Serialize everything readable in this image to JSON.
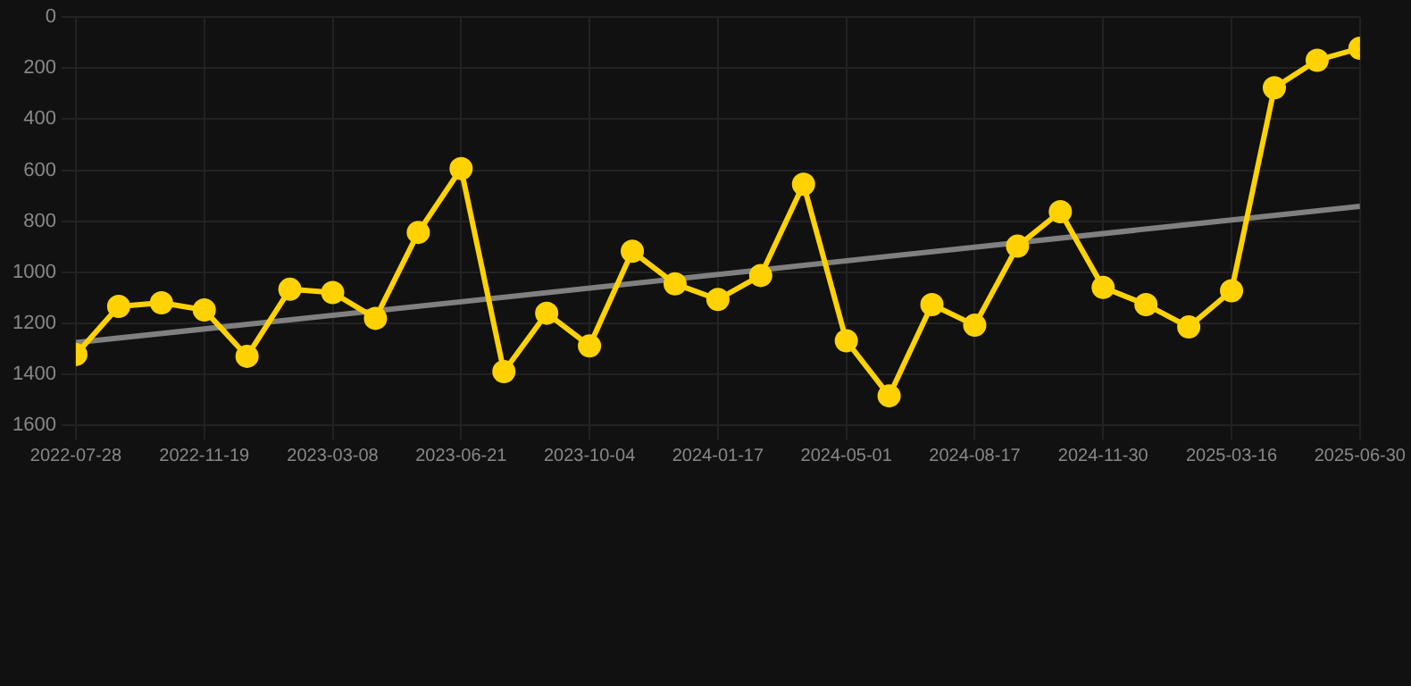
{
  "chart_data": {
    "type": "line",
    "categories": [
      "2022-07-28",
      null,
      null,
      "2022-11-19",
      null,
      null,
      "2023-03-08",
      null,
      null,
      "2023-06-21",
      null,
      null,
      "2023-10-04",
      null,
      null,
      "2024-01-17",
      null,
      null,
      "2024-05-01",
      null,
      null,
      "2024-08-17",
      null,
      null,
      "2024-11-30",
      null,
      null,
      "2025-03-16",
      null,
      null,
      "2025-06-30"
    ],
    "series": [
      {
        "color": "#ffd200",
        "marker": "circle",
        "values": [
          1323,
          1134,
          1120,
          1148,
          1330,
          1067,
          1080,
          1181,
          844,
          594,
          1390,
          1161,
          1289,
          918,
          1046,
          1107,
          1013,
          655,
          1269,
          1485,
          1127,
          1208,
          898,
          763,
          1060,
          1127,
          1215,
          1073,
          277,
          169,
          122
        ]
      },
      {
        "color": "#808080",
        "marker": "none",
        "values": [
          1276,
          null,
          null,
          null,
          null,
          null,
          null,
          null,
          null,
          null,
          null,
          null,
          null,
          null,
          null,
          null,
          null,
          null,
          null,
          null,
          null,
          null,
          null,
          null,
          null,
          null,
          null,
          null,
          null,
          null,
          742
        ]
      }
    ],
    "ylim": [
      1600,
      0
    ],
    "yticks": [
      0,
      200,
      400,
      600,
      800,
      1000,
      1200,
      1400,
      1600
    ],
    "grid": true,
    "legend": false
  }
}
